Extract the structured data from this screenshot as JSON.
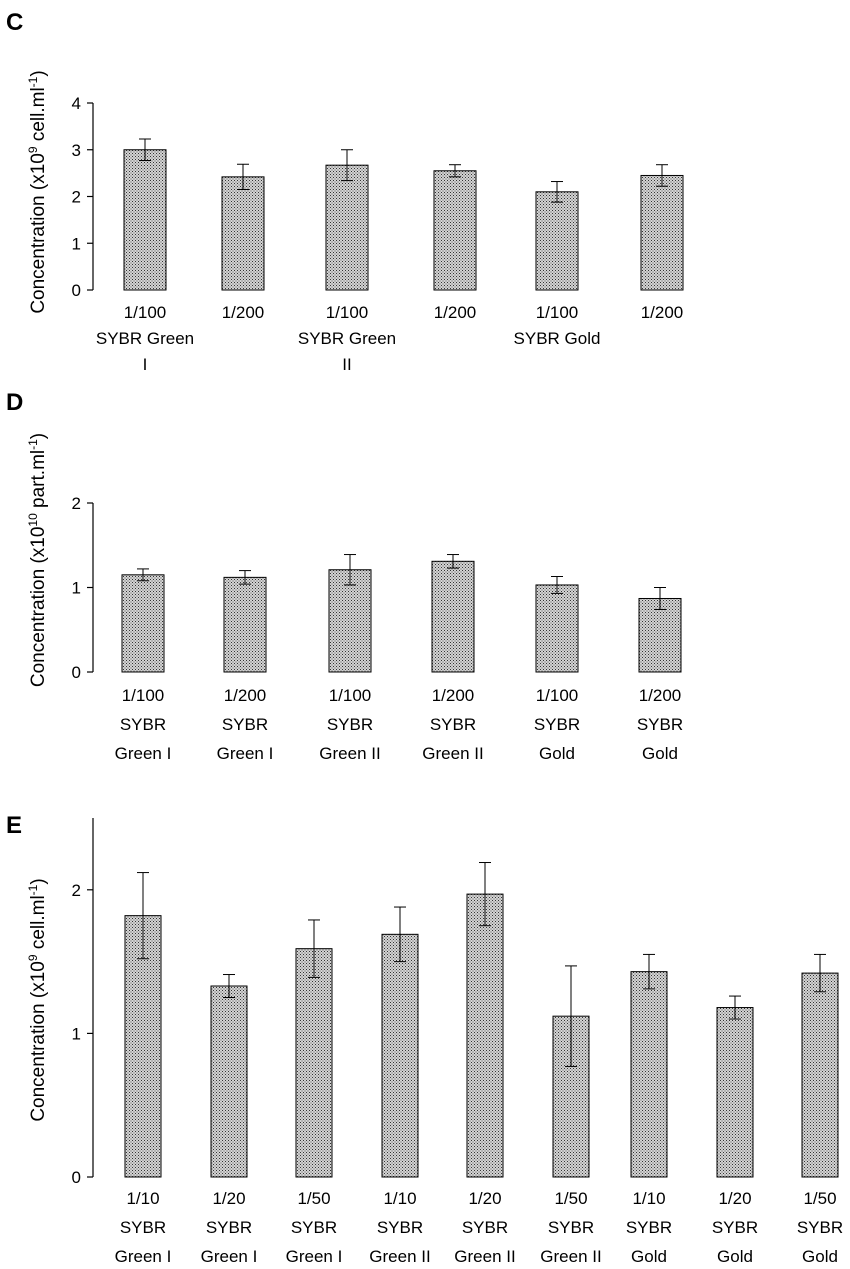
{
  "chart_data": [
    {
      "type": "bar",
      "panel": "C",
      "ylabel": "Concentration (x10^9 cell.ml^-1)",
      "ylabel_parts": {
        "pre": "Concentration (x10",
        "exp": "9",
        "mid": " cell.ml",
        "exp2": "-1",
        "post": ")"
      },
      "ylim": [
        0,
        4
      ],
      "yticks": [
        "0",
        "1",
        "2",
        "3",
        "4"
      ],
      "categories": [
        [
          "1/100",
          "SYBR Green",
          "I"
        ],
        [
          "1/200"
        ],
        [
          "1/100",
          "SYBR Green",
          "II"
        ],
        [
          "1/200"
        ],
        [
          "1/100",
          "SYBR Gold"
        ],
        [
          "1/200"
        ]
      ],
      "values": [
        3.0,
        2.42,
        2.67,
        2.55,
        2.1,
        2.45
      ],
      "errors": [
        0.23,
        0.27,
        0.33,
        0.13,
        0.22,
        0.23
      ]
    },
    {
      "type": "bar",
      "panel": "D",
      "ylabel": "Concentration (x10^10 part.ml^-1)",
      "ylabel_parts": {
        "pre": "Concentration (x10",
        "exp": "10",
        "mid": " part.ml",
        "exp2": "-1",
        "post": ")"
      },
      "ylim": [
        0,
        2
      ],
      "yticks": [
        "0",
        "1",
        "2"
      ],
      "categories": [
        [
          "1/100",
          "SYBR",
          "Green I"
        ],
        [
          "1/200",
          "SYBR",
          "Green I"
        ],
        [
          "1/100",
          "SYBR",
          "Green II"
        ],
        [
          "1/200",
          "SYBR",
          "Green II"
        ],
        [
          "1/100",
          "SYBR",
          "Gold"
        ],
        [
          "1/200",
          "SYBR",
          "Gold"
        ]
      ],
      "values": [
        1.15,
        1.12,
        1.21,
        1.31,
        1.03,
        0.87
      ],
      "errors": [
        0.07,
        0.08,
        0.18,
        0.08,
        0.1,
        0.13
      ]
    },
    {
      "type": "bar",
      "panel": "E",
      "ylabel": "Concentration (x10^9 cell.ml^-1)",
      "ylabel_parts": {
        "pre": "Concentration (x10",
        "exp": "9",
        "mid": " cell.ml",
        "exp2": "-1",
        "post": ")"
      },
      "ylim": [
        0,
        2.5
      ],
      "yticks": [
        "0",
        "1",
        "2"
      ],
      "categories": [
        [
          "1/10",
          "SYBR",
          "Green I"
        ],
        [
          "1/20",
          "SYBR",
          "Green I"
        ],
        [
          "1/50",
          "SYBR",
          "Green I"
        ],
        [
          "1/10",
          "SYBR",
          "Green II"
        ],
        [
          "1/20",
          "SYBR",
          "Green II"
        ],
        [
          "1/50",
          "SYBR",
          "Green II"
        ],
        [
          "1/10",
          "SYBR",
          "Gold"
        ],
        [
          "1/20",
          "SYBR",
          "Gold"
        ],
        [
          "1/50",
          "SYBR",
          "Gold"
        ]
      ],
      "values": [
        1.82,
        1.33,
        1.59,
        1.69,
        1.97,
        1.12,
        1.43,
        1.18,
        1.42
      ],
      "errors": [
        0.3,
        0.08,
        0.2,
        0.19,
        0.22,
        0.35,
        0.12,
        0.08,
        0.13
      ]
    }
  ]
}
